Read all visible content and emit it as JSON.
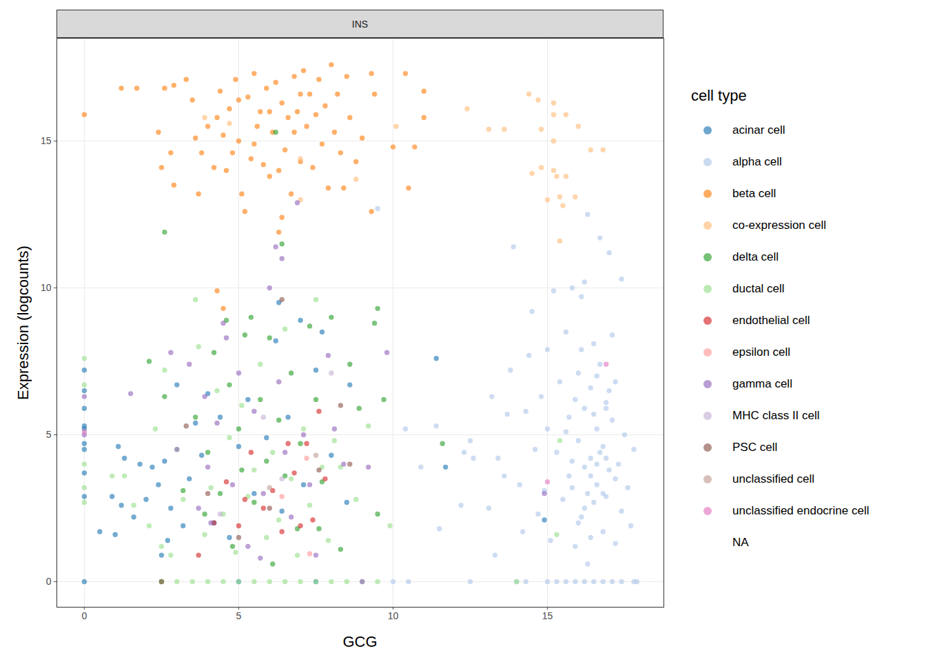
{
  "chart_data": {
    "type": "scatter",
    "title": "INS",
    "x_label": "GCG",
    "y_label": "Expression (logcounts)",
    "legend_title": "cell type",
    "legend": "right",
    "grid": true,
    "xlim": [
      -0.89,
      18.77
    ],
    "ylim": [
      -0.87,
      18.5
    ],
    "xticks": [
      0,
      5,
      10,
      15
    ],
    "yticks": [
      0,
      5,
      10,
      15
    ],
    "series": [
      {
        "name": "acinar cell",
        "color": "#1f77b4",
        "x": [
          0,
          0,
          0,
          0,
          0,
          0,
          0,
          0,
          0,
          0,
          0.5,
          0.9,
          1.0,
          1.1,
          1.2,
          1.3,
          1.6,
          1.8,
          2.0,
          2.2,
          2.4,
          2.5,
          2.6,
          2.8,
          3.0,
          3.2,
          3.4,
          3.6,
          3.8,
          4.0,
          4.2,
          4.4,
          4.7,
          5.0,
          5.3,
          5.5,
          5.9,
          6.2,
          6.4,
          6.6,
          7.0,
          7.1,
          7.5,
          7.7,
          8.0,
          8.6,
          8.5,
          11.4,
          11.7,
          14.9,
          5.0,
          7.5,
          2.7,
          6.3
        ],
        "values": [
          0,
          2.9,
          3.7,
          4.5,
          4.7,
          5.2,
          5.3,
          5.9,
          6.5,
          7.2,
          1.7,
          2.9,
          1.6,
          4.6,
          2.6,
          4.2,
          2.2,
          4.0,
          2.8,
          3.9,
          3.3,
          0.9,
          4.1,
          2.5,
          6.7,
          1.9,
          3.5,
          5.4,
          4.3,
          6.4,
          2.0,
          5.6,
          1.5,
          4.6,
          6.2,
          3.0,
          4.9,
          8.2,
          2.4,
          5.6,
          8.9,
          3.3,
          7.2,
          8.5,
          4.3,
          6.7,
          2.7,
          7.6,
          3.9,
          2.1,
          0,
          0,
          1.4,
          9.5
        ]
      },
      {
        "name": "alpha cell",
        "color": "#aec7e8",
        "x": [
          10.0,
          10.5,
          12.5,
          14.0,
          14.3,
          15.0,
          15.3,
          15.6,
          15.9,
          16.2,
          16.5,
          16.8,
          17.1,
          17.4,
          17.8,
          17.9,
          10.4,
          10.9,
          11.4,
          11.5,
          12.2,
          12.3,
          12.5,
          12.6,
          13.1,
          13.2,
          13.3,
          13.4,
          13.6,
          13.7,
          13.8,
          13.9,
          14.1,
          14.2,
          14.3,
          14.4,
          14.5,
          14.6,
          14.7,
          14.8,
          14.9,
          15.0,
          15.0,
          15.1,
          15.2,
          15.3,
          15.4,
          15.5,
          15.6,
          15.7,
          15.7,
          15.8,
          15.9,
          16.0,
          16.0,
          16.1,
          16.1,
          16.2,
          16.2,
          16.3,
          16.3,
          16.4,
          16.4,
          16.5,
          16.5,
          16.6,
          16.6,
          16.7,
          16.7,
          16.8,
          16.8,
          16.9,
          16.9,
          17.0,
          17.0,
          17.1,
          17.1,
          17.2,
          17.2,
          17.3,
          17.4,
          17.4,
          17.5,
          17.6,
          17.7,
          17.8,
          16.2,
          15.9,
          16.6,
          16.4,
          16.0,
          15.8,
          16.8,
          16.1,
          9.5,
          15.6,
          16.9,
          16.3,
          16.7,
          16.5,
          16.9,
          16.2,
          17.0,
          16.6,
          16.4,
          15.8,
          17.2
        ],
        "values": [
          0,
          0,
          0,
          0,
          0,
          0,
          0,
          0,
          0,
          0,
          0,
          0,
          0,
          0,
          0,
          0,
          5.2,
          3.9,
          5.3,
          1.8,
          2.6,
          4.4,
          4.8,
          4.2,
          2.5,
          6.3,
          0.9,
          4.2,
          3.6,
          5.7,
          7.2,
          11.4,
          3.3,
          1.7,
          5.8,
          7.7,
          9.2,
          4.5,
          2.3,
          6.3,
          3.1,
          5.2,
          7.9,
          1.4,
          9.9,
          4.4,
          6.8,
          2.8,
          8.5,
          3.6,
          5.6,
          10.0,
          1.2,
          4.8,
          7.1,
          2.2,
          9.7,
          3.9,
          5.9,
          12.5,
          0.6,
          6.6,
          4.2,
          8.1,
          2.7,
          3.3,
          5.2,
          11.7,
          7.4,
          1.7,
          4.6,
          6.1,
          2.9,
          11.2,
          3.8,
          8.4,
          5.5,
          1.3,
          6.8,
          4.0,
          10.3,
          2.4,
          5.0,
          3.2,
          1.9,
          4.5,
          10.2,
          6.2,
          4.0,
          3.6,
          2.0,
          4.1,
          3.0,
          7.9,
          12.7,
          5.1,
          5.9,
          3.0,
          4.4,
          5.7,
          4.2,
          2.5,
          6.5,
          7.0,
          1.5,
          3.2,
          3.5
        ]
      },
      {
        "name": "beta cell",
        "color": "#ff7f0e",
        "x": [
          0,
          1.2,
          1.7,
          2.5,
          2.4,
          2.6,
          2.9,
          2.8,
          2.9,
          3.5,
          3.3,
          3.7,
          3.8,
          4.0,
          4.2,
          4.3,
          4.4,
          4.5,
          4.6,
          4.7,
          4.8,
          4.9,
          5.0,
          5.1,
          5.2,
          5.3,
          5.4,
          5.5,
          5.6,
          5.7,
          5.8,
          5.9,
          6.0,
          6.1,
          6.2,
          6.3,
          6.4,
          6.4,
          6.5,
          6.6,
          6.7,
          6.8,
          6.9,
          7.0,
          7.1,
          7.2,
          7.3,
          7.4,
          7.5,
          7.6,
          7.7,
          7.8,
          7.9,
          8.0,
          8.1,
          8.2,
          8.3,
          8.4,
          8.5,
          8.6,
          8.8,
          9.0,
          9.3,
          9.4,
          9.3,
          10.0,
          10.4,
          10.5,
          10.7,
          11.0,
          11.0,
          6.3,
          4.3,
          4.5,
          3.6,
          5.0,
          6.0,
          7.0,
          5.5,
          6.8
        ],
        "values": [
          15.9,
          16.8,
          16.8,
          14.1,
          15.3,
          16.8,
          16.9,
          14.6,
          13.5,
          16.4,
          17.1,
          13.2,
          14.6,
          15.5,
          14.1,
          15.8,
          16.7,
          15.2,
          14.0,
          16.1,
          14.6,
          17.1,
          15.0,
          13.2,
          12.6,
          16.5,
          14.4,
          17.3,
          15.5,
          16.0,
          14.2,
          16.8,
          13.8,
          15.3,
          17.0,
          14.0,
          12.4,
          16.3,
          14.7,
          15.8,
          13.2,
          17.2,
          16.0,
          14.3,
          17.4,
          15.5,
          16.6,
          14.1,
          15.9,
          17.1,
          14.9,
          16.2,
          13.4,
          17.6,
          15.3,
          16.6,
          14.6,
          13.4,
          17.2,
          15.8,
          14.3,
          15.1,
          12.6,
          16.6,
          17.3,
          14.8,
          17.3,
          13.4,
          14.8,
          16.7,
          15.8,
          11.9,
          9.9,
          9.3,
          15.1,
          16.4,
          16.0,
          16.6,
          14.9,
          15.3
        ]
      },
      {
        "name": "co-expression cell",
        "color": "#ffbb78",
        "x": [
          14.4,
          14.7,
          15.2,
          15.2,
          15.6,
          14.8,
          15.2,
          16.0,
          14.5,
          14.8,
          15.2,
          15.3,
          15.6,
          16.4,
          16.8,
          15.4,
          15.5,
          15.0,
          15.9,
          15.4,
          12.4,
          13.1,
          13.6,
          10.1,
          3.9,
          7.0,
          8.8,
          7.0,
          4.7
        ],
        "values": [
          16.6,
          16.4,
          16.3,
          15.9,
          15.9,
          15.4,
          15.0,
          15.5,
          13.9,
          14.1,
          14.0,
          13.8,
          13.8,
          14.7,
          14.7,
          13.1,
          12.8,
          13.0,
          13.1,
          11.6,
          16.1,
          15.4,
          15.4,
          15.5,
          15.8,
          14.4,
          13.7,
          13.0,
          15.6
        ]
      },
      {
        "name": "delta cell",
        "color": "#2ca02c",
        "x": [
          2.1,
          2.5,
          2.6,
          2.6,
          3.2,
          3.6,
          3.9,
          4.0,
          4.2,
          4.4,
          4.6,
          4.8,
          5.0,
          5.2,
          5.4,
          5.5,
          5.7,
          5.9,
          6.0,
          6.2,
          6.3,
          6.4,
          6.5,
          6.7,
          6.9,
          7.0,
          7.3,
          7.5,
          7.7,
          8.0,
          8.3,
          8.6,
          8.9,
          9.4,
          9.5,
          9.7,
          9.5,
          11.6,
          7.6,
          5.1,
          6.1,
          4.7
        ],
        "values": [
          7.5,
          0,
          6.3,
          11.9,
          3.1,
          5.6,
          2.3,
          4.4,
          7.8,
          3.0,
          8.9,
          1.2,
          5.2,
          8.4,
          9.0,
          2.7,
          6.2,
          4.1,
          8.3,
          15.3,
          5.5,
          11.5,
          3.6,
          7.1,
          1.8,
          4.7,
          8.7,
          6.2,
          3.4,
          9.0,
          1.1,
          7.4,
          5.9,
          8.8,
          9.3,
          6.2,
          2.3,
          4.7,
          1.8,
          3.8,
          0.6,
          6.7
        ]
      },
      {
        "name": "ductal cell",
        "color": "#98df8a",
        "x": [
          0,
          0,
          0,
          0,
          0,
          0.9,
          1.3,
          1.6,
          2.1,
          2.3,
          2.5,
          2.6,
          2.8,
          3.0,
          3.2,
          3.6,
          3.7,
          3.9,
          4.1,
          4.3,
          4.5,
          4.7,
          4.9,
          5.1,
          5.3,
          5.5,
          5.7,
          5.9,
          6.1,
          6.3,
          6.5,
          6.7,
          6.9,
          7.1,
          7.3,
          7.5,
          7.7,
          7.9,
          8.1,
          8.3,
          8.8,
          9.2,
          9.9,
          14.0,
          2.5,
          3.0,
          3.5,
          4.0,
          4.5,
          5.0,
          5.5,
          6.0,
          6.5,
          7.0,
          7.5,
          8.0,
          8.5,
          9.0,
          9.5,
          15.3,
          15.4
        ],
        "values": [
          7.6,
          6.7,
          4.0,
          3.2,
          2.7,
          3.6,
          3.6,
          2.6,
          1.9,
          5.2,
          1.2,
          7.2,
          0.9,
          4.5,
          2.8,
          9.6,
          8.0,
          1.6,
          3.2,
          6.5,
          2.3,
          4.9,
          1.0,
          6.0,
          2.9,
          3.8,
          7.4,
          1.5,
          4.4,
          2.1,
          8.6,
          3.5,
          0.9,
          5.2,
          2.6,
          9.6,
          3.9,
          1.4,
          4.8,
          3.9,
          2.8,
          5.3,
          1.9,
          0,
          0,
          0,
          0,
          0,
          0,
          0,
          0,
          0,
          0,
          0,
          0,
          0,
          0,
          0,
          0,
          1.6,
          4.8
        ]
      },
      {
        "name": "endothelial cell",
        "color": "#d62728",
        "x": [
          3.7,
          4.2,
          4.6,
          5.0,
          5.4,
          5.8,
          6.1,
          6.4,
          6.8,
          7.0,
          7.2,
          7.6,
          7.8,
          6.6,
          5.2,
          7.4
        ],
        "values": [
          0.9,
          2.0,
          3.4,
          1.9,
          4.4,
          2.5,
          3.1,
          1.7,
          3.7,
          1.9,
          4.7,
          5.8,
          3.5,
          4.7,
          2.8,
          2.1
        ]
      },
      {
        "name": "epsilon cell",
        "color": "#ff9896",
        "x": [
          7.3,
          6.4,
          7.2
        ],
        "values": [
          0.95,
          2.9,
          4.2
        ]
      },
      {
        "name": "gamma cell",
        "color": "#9467bd",
        "x": [
          0,
          0,
          1.5,
          2.8,
          3.0,
          3.4,
          3.7,
          3.9,
          4.1,
          4.3,
          4.5,
          4.6,
          4.8,
          5.0,
          5.3,
          5.5,
          5.8,
          6.0,
          6.2,
          6.3,
          6.4,
          6.5,
          6.7,
          6.9,
          7.1,
          7.3,
          7.5,
          7.9,
          8.1,
          8.4,
          9.0,
          9.2,
          9.8,
          14.9,
          5.7,
          4.0
        ],
        "values": [
          6.3,
          5.0,
          6.4,
          7.8,
          4.5,
          7.4,
          2.5,
          6.3,
          2.0,
          5.4,
          8.8,
          8.3,
          3.3,
          7.1,
          1.2,
          5.8,
          3.0,
          10.0,
          11.4,
          6.8,
          11.0,
          4.4,
          2.2,
          12.9,
          5.0,
          3.3,
          0.9,
          7.7,
          5.2,
          4.0,
          0,
          3.9,
          7.8,
          3.0,
          0.8,
          3.9
        ]
      },
      {
        "name": "MHC class II cell",
        "color": "#c5b0d5",
        "x": [
          6.4,
          8.0,
          4.4,
          5.8
        ],
        "values": [
          3.5,
          7.1,
          2.3,
          5.6
        ]
      },
      {
        "name": "PSC cell",
        "color": "#8c564b",
        "x": [
          3.3,
          6.4,
          8.3,
          8.6,
          4.0,
          6.0,
          5.0,
          7.6,
          2.5
        ],
        "values": [
          5.3,
          9.6,
          6.0,
          4.0,
          3.0,
          2.5,
          1.5,
          3.8,
          0
        ]
      },
      {
        "name": "unclassified cell",
        "color": "#c49c94",
        "x": [
          7.5,
          6.0
        ],
        "values": [
          4.3,
          3.2
        ]
      },
      {
        "name": "unclassified endocrine cell",
        "color": "#e377c2",
        "x": [
          15.0,
          16.9,
          0
        ],
        "values": [
          3.4,
          7.4,
          5.1
        ]
      },
      {
        "name": "NA",
        "color": null,
        "x": [],
        "values": []
      }
    ]
  }
}
